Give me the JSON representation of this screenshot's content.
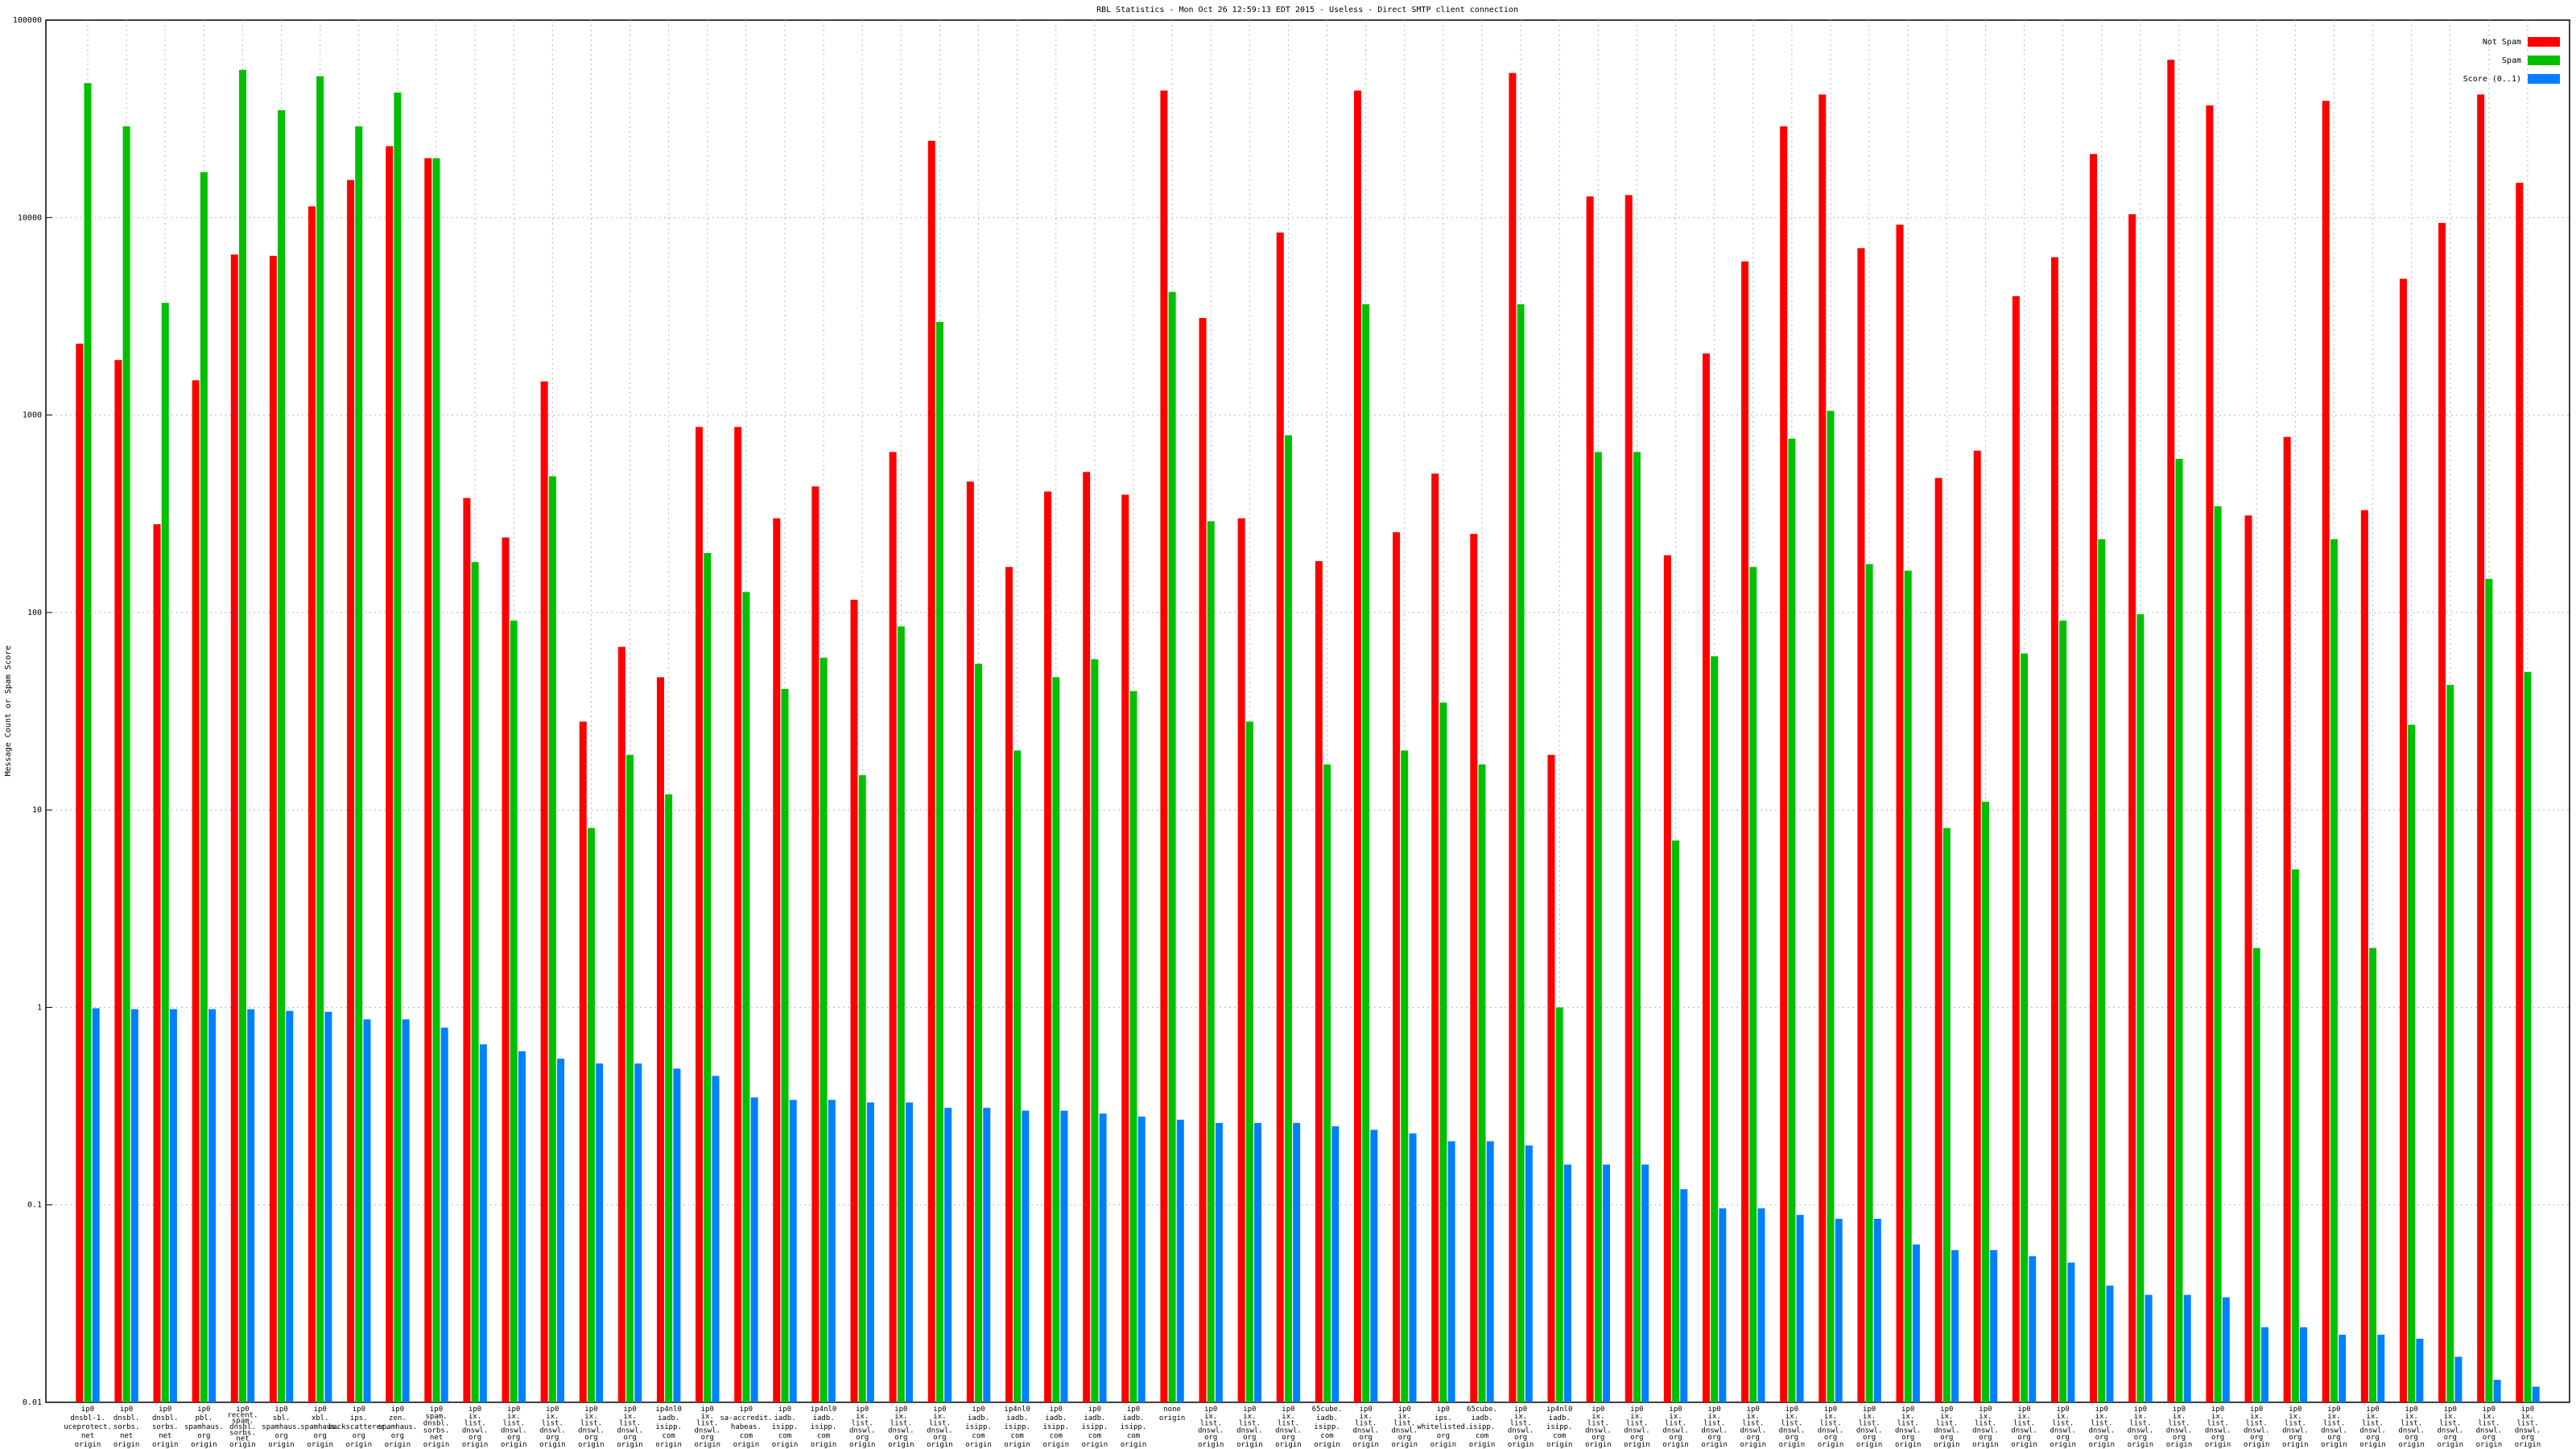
{
  "chart_data": {
    "type": "bar",
    "title": "RBL Statistics - Mon Oct 26 12:59:13 EDT 2015 - Useless - Direct SMTP client connection",
    "y_label": "Message Count or Spam Score",
    "log_y": true,
    "grid": true,
    "legend": "upper right",
    "ylim": [
      0.01,
      100000
    ],
    "yticks": [
      0.01,
      0.1,
      1,
      10,
      100,
      1000,
      10000,
      100000
    ],
    "categories": [
      [
        "ip0",
        "dnsbl-1.",
        "uceprotect.",
        "net",
        "origin"
      ],
      [
        "ip0",
        "dnsbl.",
        "sorbs.",
        "net",
        "origin"
      ],
      [
        "ip0",
        "dnsbl.",
        "sorbs.",
        "net",
        "origin"
      ],
      [
        "ip0",
        "pbl.",
        "spamhaus.",
        "org",
        "origin"
      ],
      [
        "ip0",
        "recent.",
        "spam.",
        "dnsbl.",
        "sorbs.",
        "net",
        "origin"
      ],
      [
        "ip0",
        "sbl.",
        "spamhaus.",
        "org",
        "origin"
      ],
      [
        "ip0",
        "xbl.",
        "spamhaus.",
        "org",
        "origin"
      ],
      [
        "ip0",
        "ips.",
        "backscatterer.",
        "org",
        "origin"
      ],
      [
        "ip0",
        "zen.",
        "spamhaus.",
        "org",
        "origin"
      ],
      [
        "ip0",
        "spam.",
        "dnsbl.",
        "sorbs.",
        "net",
        "origin"
      ],
      [
        "ip0",
        "ix.",
        "list.",
        "dnswl.",
        "org",
        "origin"
      ],
      [
        "ip0",
        "ix.",
        "list.",
        "dnswl.",
        "org",
        "origin"
      ],
      [
        "ip0",
        "ix.",
        "list.",
        "dnswl.",
        "org",
        "origin"
      ],
      [
        "ip0",
        "ix.",
        "list.",
        "dnswl.",
        "org",
        "origin"
      ],
      [
        "ip0",
        "ix.",
        "list.",
        "dnswl.",
        "org",
        "origin"
      ],
      [
        "ip4nl0",
        "iadb.",
        "isipp.",
        "com",
        "origin"
      ],
      [
        "ip0",
        "ix.",
        "list.",
        "dnswl.",
        "org",
        "origin"
      ],
      [
        "ip0",
        "sa-accredit.",
        "habeas.",
        "com",
        "origin"
      ],
      [
        "ip0",
        "iadb.",
        "isipp.",
        "com",
        "origin"
      ],
      [
        "ip4nl0",
        "iadb.",
        "isipp.",
        "com",
        "origin"
      ],
      [
        "ip0",
        "ix.",
        "list.",
        "dnswl.",
        "org",
        "origin"
      ],
      [
        "ip0",
        "ix.",
        "list.",
        "dnswl.",
        "org",
        "origin"
      ],
      [
        "ip0",
        "ix.",
        "list.",
        "dnswl.",
        "org",
        "origin"
      ],
      [
        "ip0",
        "iadb.",
        "isipp.",
        "com",
        "origin"
      ],
      [
        "ip4nl0",
        "iadb.",
        "isipp.",
        "com",
        "origin"
      ],
      [
        "ip0",
        "iadb.",
        "isipp.",
        "com",
        "origin"
      ],
      [
        "ip0",
        "iadb.",
        "isipp.",
        "com",
        "origin"
      ],
      [
        "ip0",
        "iadb.",
        "isipp.",
        "com",
        "origin"
      ],
      [
        "none",
        "origin"
      ],
      [
        "ip0",
        "ix.",
        "list.",
        "dnswl.",
        "org",
        "origin"
      ],
      [
        "ip0",
        "ix.",
        "list.",
        "dnswl.",
        "org",
        "origin"
      ],
      [
        "ip0",
        "ix.",
        "list.",
        "dnswl.",
        "org",
        "origin"
      ],
      [
        "65cube.",
        "iadb.",
        "isipp.",
        "com",
        "origin"
      ],
      [
        "ip0",
        "ix.",
        "list.",
        "dnswl.",
        "org",
        "origin"
      ],
      [
        "ip0",
        "ix.",
        "list.",
        "dnswl.",
        "org",
        "origin"
      ],
      [
        "ip0",
        "ips.",
        "whitelisted.",
        "org",
        "origin"
      ],
      [
        "65cube.",
        "iadb.",
        "isipp.",
        "com",
        "origin"
      ],
      [
        "ip0",
        "ix.",
        "list.",
        "dnswl.",
        "org",
        "origin"
      ],
      [
        "ip4nl0",
        "iadb.",
        "isipp.",
        "com",
        "origin"
      ],
      [
        "ip0",
        "ix.",
        "list.",
        "dnswl.",
        "org",
        "origin"
      ],
      [
        "ip0",
        "ix.",
        "list.",
        "dnswl.",
        "org",
        "origin"
      ],
      [
        "ip0",
        "ix.",
        "list.",
        "dnswl.",
        "org",
        "origin"
      ],
      [
        "ip0",
        "ix.",
        "list.",
        "dnswl.",
        "org",
        "origin"
      ],
      [
        "ip0",
        "ix.",
        "list.",
        "dnswl.",
        "org",
        "origin"
      ],
      [
        "ip0",
        "ix.",
        "list.",
        "dnswl.",
        "org",
        "origin"
      ],
      [
        "ip0",
        "ix.",
        "list.",
        "dnswl.",
        "org",
        "origin"
      ],
      [
        "ip0",
        "ix.",
        "list.",
        "dnswl.",
        "org",
        "origin"
      ],
      [
        "ip0",
        "ix.",
        "list.",
        "dnswl.",
        "org",
        "origin"
      ],
      [
        "ip0",
        "ix.",
        "list.",
        "dnswl.",
        "org",
        "origin"
      ],
      [
        "ip0",
        "ix.",
        "list.",
        "dnswl.",
        "org",
        "origin"
      ],
      [
        "ip0",
        "ix.",
        "list.",
        "dnswl.",
        "org",
        "origin"
      ],
      [
        "ip0",
        "ix.",
        "list.",
        "dnswl.",
        "org",
        "origin"
      ],
      [
        "ip0",
        "ix.",
        "list.",
        "dnswl.",
        "org",
        "origin"
      ],
      [
        "ip0",
        "ix.",
        "list.",
        "dnswl.",
        "org",
        "origin"
      ],
      [
        "ip0",
        "ix.",
        "list.",
        "dnswl.",
        "org",
        "origin"
      ],
      [
        "ip0",
        "ix.",
        "list.",
        "dnswl.",
        "org",
        "origin"
      ],
      [
        "ip0",
        "ix.",
        "list.",
        "dnswl.",
        "org",
        "origin"
      ],
      [
        "ip0",
        "ix.",
        "list.",
        "dnswl.",
        "org",
        "origin"
      ],
      [
        "ip0",
        "ix.",
        "list.",
        "dnswl.",
        "org",
        "origin"
      ],
      [
        "ip0",
        "ix.",
        "list.",
        "dnswl.",
        "org",
        "origin"
      ],
      [
        "ip0",
        "ix.",
        "list.",
        "dnswl.",
        "org",
        "origin"
      ],
      [
        "ip0",
        "ix.",
        "list.",
        "dnswl.",
        "org",
        "origin"
      ],
      [
        "ip0",
        "ix.",
        "list.",
        "dnswl.",
        "org",
        "origin"
      ],
      [
        "ip0",
        "ix.",
        "list.",
        "dnswl.",
        "org",
        "origin"
      ]
    ],
    "series": [
      {
        "name": "Not Spam",
        "color": "#ff0000",
        "values": [
          2300,
          1900,
          280,
          1500,
          6500,
          6400,
          11400,
          15500,
          23000,
          20000,
          380,
          240,
          1480,
          28,
          67,
          47,
          870,
          870,
          300,
          435,
          116,
          650,
          24500,
          460,
          170,
          410,
          515,
          395,
          44000,
          3100,
          300,
          8400,
          182,
          44000,
          255,
          505,
          250,
          54000,
          19,
          12800,
          13000,
          195,
          2050,
          6000,
          29000,
          42000,
          7000,
          9200,
          480,
          660,
          4000,
          6300,
          21000,
          10400,
          63000,
          37000,
          310,
          775,
          39000,
          330,
          4900,
          9400,
          42000,
          15000
        ]
      },
      {
        "name": "Spam",
        "color": "#00c000",
        "values": [
          48000,
          29000,
          3700,
          17000,
          56000,
          35000,
          52000,
          29000,
          43000,
          20000,
          180,
          91,
          490,
          8.1,
          19,
          12,
          200,
          127,
          41,
          59,
          15,
          85,
          2960,
          55,
          20,
          47,
          58,
          40,
          4200,
          290,
          28,
          790,
          17,
          3640,
          20,
          35,
          17,
          3640,
          1,
          650,
          650,
          7,
          60,
          170,
          760,
          1050,
          176,
          163,
          8.1,
          11,
          62,
          91,
          235,
          98,
          600,
          345,
          2,
          5,
          235,
          2,
          27,
          43,
          148,
          50
        ]
      },
      {
        "name": "Score (0..1)",
        "color": "#0080ff",
        "values": [
          0.99,
          0.98,
          0.98,
          0.98,
          0.98,
          0.96,
          0.95,
          0.87,
          0.87,
          0.79,
          0.65,
          0.6,
          0.55,
          0.52,
          0.52,
          0.49,
          0.45,
          0.35,
          0.34,
          0.34,
          0.33,
          0.33,
          0.31,
          0.31,
          0.3,
          0.3,
          0.29,
          0.28,
          0.27,
          0.26,
          0.26,
          0.26,
          0.25,
          0.24,
          0.23,
          0.21,
          0.21,
          0.2,
          0.16,
          0.16,
          0.16,
          0.12,
          0.096,
          0.096,
          0.089,
          0.085,
          0.085,
          0.063,
          0.059,
          0.059,
          0.055,
          0.051,
          0.039,
          0.035,
          0.035,
          0.034,
          0.024,
          0.024,
          0.022,
          0.022,
          0.021,
          0.017,
          0.013,
          0.012
        ]
      }
    ]
  }
}
